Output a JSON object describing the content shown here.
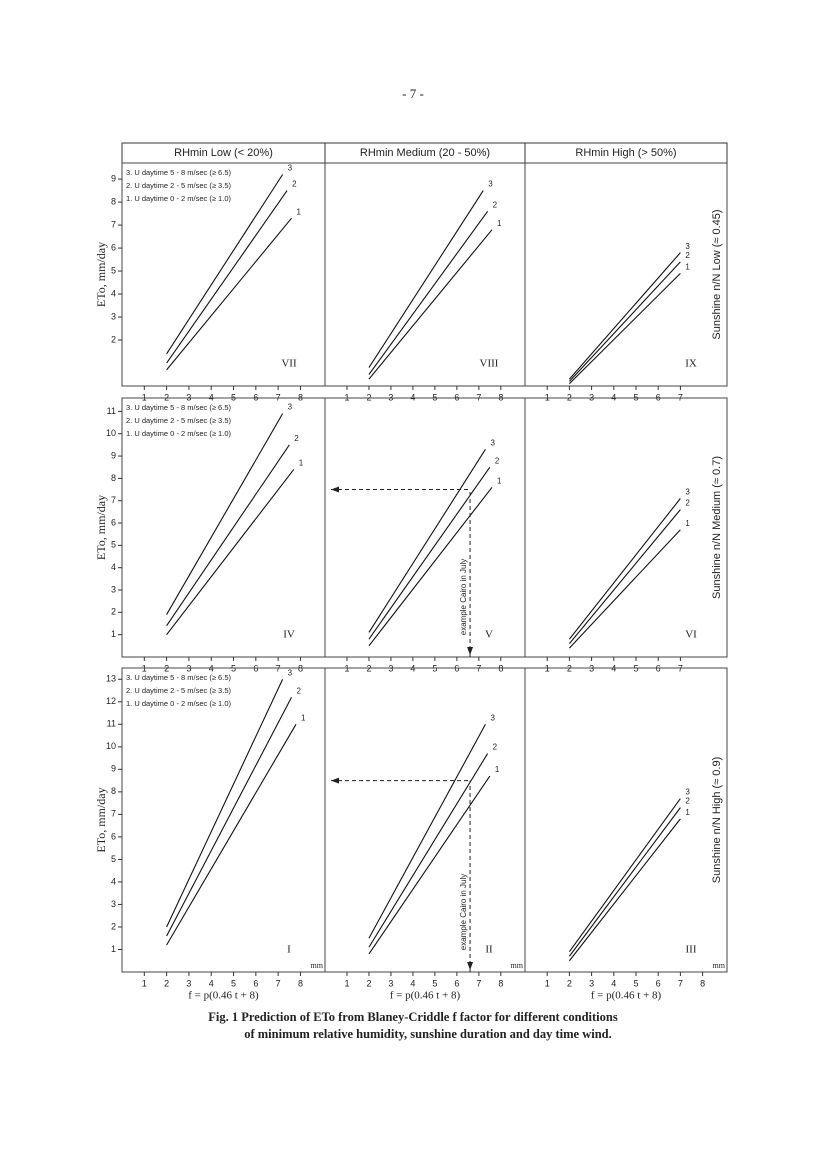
{
  "page_number": "- 7 -",
  "column_headers": [
    "RHmin Low (< 20%)",
    "RHmin Medium (20 - 50%)",
    "RHmin High (> 50%)"
  ],
  "row_labels": [
    "Sunshine n/N Low (≈ 0.45)",
    "Sunshine n/N Medium (≈ 0.7)",
    "Sunshine n/N High (≈ 0.9)"
  ],
  "caption": [
    "Fig. 1 Prediction of ETo from Blaney-Criddle f factor for different conditions",
    "of minimum relative humidity, sunshine duration and day time wind."
  ],
  "chart_data": [
    {
      "type": "line",
      "title": "VII",
      "y_label": "ETo, mm/day",
      "legend": [
        "3. U daytime 5 - 8 m/sec (≥ 6.5)",
        "2. U daytime 2 - 5 m/sec (≥ 3.5)",
        "1. U daytime 0 - 2 m/sec (≥ 1.0)"
      ],
      "xlim": [
        0,
        9.1
      ],
      "ylim": [
        0,
        9.7
      ],
      "xticks": [
        1,
        2,
        3,
        4,
        5,
        6,
        7,
        8
      ],
      "yticks": [
        2,
        3,
        4,
        5,
        6,
        7,
        8,
        9
      ],
      "series": [
        {
          "name": "3",
          "x": [
            2,
            7.2
          ],
          "values": [
            1.4,
            9.2
          ]
        },
        {
          "name": "2",
          "x": [
            2,
            7.4
          ],
          "values": [
            1.0,
            8.5
          ]
        },
        {
          "name": "1",
          "x": [
            2,
            7.6
          ],
          "values": [
            0.7,
            7.3
          ]
        }
      ]
    },
    {
      "type": "line",
      "title": "VIII",
      "xlim": [
        0,
        9.1
      ],
      "ylim": [
        0,
        9.7
      ],
      "xticks": [
        1,
        2,
        3,
        4,
        5,
        6,
        7,
        8
      ],
      "series": [
        {
          "name": "3",
          "x": [
            2,
            7.2
          ],
          "values": [
            0.8,
            8.5
          ]
        },
        {
          "name": "2",
          "x": [
            2,
            7.4
          ],
          "values": [
            0.5,
            7.6
          ]
        },
        {
          "name": "1",
          "x": [
            2,
            7.6
          ],
          "values": [
            0.3,
            6.8
          ]
        }
      ]
    },
    {
      "type": "line",
      "title": "IX",
      "xlim": [
        0,
        9.1
      ],
      "ylim": [
        0,
        9.7
      ],
      "xticks": [
        1,
        2,
        3,
        4,
        5,
        6,
        7
      ],
      "series": [
        {
          "name": "3",
          "x": [
            2,
            7
          ],
          "values": [
            0.3,
            5.8
          ]
        },
        {
          "name": "2",
          "x": [
            2,
            7
          ],
          "values": [
            0.2,
            5.4
          ]
        },
        {
          "name": "1",
          "x": [
            2,
            7
          ],
          "values": [
            0.1,
            4.9
          ]
        }
      ]
    },
    {
      "type": "line",
      "title": "IV",
      "y_label": "ETo, mm/day",
      "legend": [
        "3. U daytime 5 - 8 m/sec (≥ 6.5)",
        "2. U daytime 2 - 5 m/sec (≥ 3.5)",
        "1. U daytime 0 - 2 m/sec (≥ 1.0)"
      ],
      "xlim": [
        0,
        9.1
      ],
      "ylim": [
        0,
        11.6
      ],
      "xticks": [
        1,
        2,
        3,
        4,
        5,
        6,
        7,
        8
      ],
      "yticks": [
        1,
        2,
        3,
        4,
        5,
        6,
        7,
        8,
        9,
        10,
        11
      ],
      "series": [
        {
          "name": "3",
          "x": [
            2,
            7.2
          ],
          "values": [
            1.9,
            10.9
          ]
        },
        {
          "name": "2",
          "x": [
            2,
            7.5
          ],
          "values": [
            1.4,
            9.5
          ]
        },
        {
          "name": "1",
          "x": [
            2,
            7.7
          ],
          "values": [
            1.0,
            8.4
          ]
        }
      ]
    },
    {
      "type": "line",
      "title": "V",
      "example": {
        "label": "example Cairo in July",
        "x": 6.6,
        "y": 7.5
      },
      "xlim": [
        0,
        9.1
      ],
      "ylim": [
        0,
        11.6
      ],
      "xticks": [
        1,
        2,
        3,
        4,
        5,
        6,
        7,
        8
      ],
      "series": [
        {
          "name": "3",
          "x": [
            2,
            7.3
          ],
          "values": [
            1.1,
            9.3
          ]
        },
        {
          "name": "2",
          "x": [
            2,
            7.5
          ],
          "values": [
            0.8,
            8.5
          ]
        },
        {
          "name": "1",
          "x": [
            2,
            7.6
          ],
          "values": [
            0.5,
            7.6
          ]
        }
      ]
    },
    {
      "type": "line",
      "title": "VI",
      "xlim": [
        0,
        9.1
      ],
      "ylim": [
        0,
        11.6
      ],
      "xticks": [
        1,
        2,
        3,
        4,
        5,
        6,
        7
      ],
      "series": [
        {
          "name": "3",
          "x": [
            2,
            7
          ],
          "values": [
            0.8,
            7.1
          ]
        },
        {
          "name": "2",
          "x": [
            2,
            7
          ],
          "values": [
            0.6,
            6.6
          ]
        },
        {
          "name": "1",
          "x": [
            2,
            7
          ],
          "values": [
            0.4,
            5.7
          ]
        }
      ]
    },
    {
      "type": "line",
      "title": "I",
      "y_label": "ETo, mm/day",
      "x_label": "f = p(0.46 t + 8)",
      "x_unit": "mm",
      "legend": [
        "3. U daytime 5 - 8 m/sec (≥ 6.5)",
        "2. U daytime 2 - 5 m/sec (≥ 3.5)",
        "1. U daytime 0 - 2 m/sec (≥ 1.0)"
      ],
      "xlim": [
        0,
        9.1
      ],
      "ylim": [
        0,
        13.5
      ],
      "xticks": [
        1,
        2,
        3,
        4,
        5,
        6,
        7,
        8
      ],
      "yticks": [
        1,
        2,
        3,
        4,
        5,
        6,
        7,
        8,
        9,
        10,
        11,
        12,
        13
      ],
      "series": [
        {
          "name": "3",
          "x": [
            2,
            7.2
          ],
          "values": [
            2.0,
            13.0
          ]
        },
        {
          "name": "2",
          "x": [
            2,
            7.6
          ],
          "values": [
            1.6,
            12.2
          ]
        },
        {
          "name": "1",
          "x": [
            2,
            7.8
          ],
          "values": [
            1.2,
            11.0
          ]
        }
      ]
    },
    {
      "type": "line",
      "title": "II",
      "x_label": "f = p(0.46 t + 8)",
      "x_unit": "mm",
      "example": {
        "label": "example Cairo in July",
        "x": 6.6,
        "y": 8.5
      },
      "xlim": [
        0,
        9.1
      ],
      "ylim": [
        0,
        13.5
      ],
      "xticks": [
        1,
        2,
        3,
        4,
        5,
        6,
        7,
        8
      ],
      "series": [
        {
          "name": "3",
          "x": [
            2,
            7.3
          ],
          "values": [
            1.5,
            11.0
          ]
        },
        {
          "name": "2",
          "x": [
            2,
            7.4
          ],
          "values": [
            1.1,
            9.7
          ]
        },
        {
          "name": "1",
          "x": [
            2,
            7.5
          ],
          "values": [
            0.8,
            8.7
          ]
        }
      ]
    },
    {
      "type": "line",
      "title": "III",
      "x_label": "f = p(0.46 t + 8)",
      "x_unit": "mm",
      "xlim": [
        0,
        9.1
      ],
      "ylim": [
        0,
        13.5
      ],
      "xticks": [
        1,
        2,
        3,
        4,
        5,
        6,
        7,
        8
      ],
      "series": [
        {
          "name": "3",
          "x": [
            2,
            7
          ],
          "values": [
            0.9,
            7.7
          ]
        },
        {
          "name": "2",
          "x": [
            2,
            7
          ],
          "values": [
            0.7,
            7.3
          ]
        },
        {
          "name": "1",
          "x": [
            2,
            7
          ],
          "values": [
            0.5,
            6.8
          ]
        }
      ]
    }
  ]
}
